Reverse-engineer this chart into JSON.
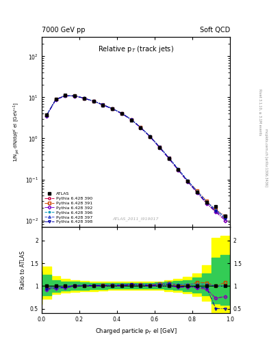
{
  "title_left": "7000 GeV pp",
  "title_right": "Soft QCD",
  "main_title": "Relative p$_T$ (track jets)",
  "xlabel": "Charged particle p$_{T}$ el [GeV]",
  "ylabel_main": "1/N$_{jet}$ dN/dp$^{rel}_{T}$ el [GeV$^{-1}$]",
  "ylabel_ratio": "Ratio to ATLAS",
  "watermark": "ATLAS_2011_I919017",
  "right_label1": "Rivet 3.1.10, ≥ 3.1M events",
  "right_label2": "mcplots.cern.ch [arXiv:1306.3436]",
  "xlim": [
    0.0,
    1.0
  ],
  "ylim_main": [
    0.007,
    300
  ],
  "ylim_ratio": [
    0.4,
    2.3
  ],
  "atlas_x": [
    0.025,
    0.075,
    0.125,
    0.175,
    0.225,
    0.275,
    0.325,
    0.375,
    0.425,
    0.475,
    0.525,
    0.575,
    0.625,
    0.675,
    0.725,
    0.775,
    0.825,
    0.875,
    0.925,
    0.975
  ],
  "atlas_y": [
    3.8,
    9.2,
    11.2,
    10.8,
    9.5,
    8.0,
    6.5,
    5.2,
    4.0,
    2.8,
    1.8,
    1.1,
    0.6,
    0.32,
    0.175,
    0.09,
    0.05,
    0.028,
    0.022,
    0.013
  ],
  "atlas_yerr": [
    0.3,
    0.4,
    0.5,
    0.5,
    0.4,
    0.3,
    0.25,
    0.2,
    0.15,
    0.1,
    0.07,
    0.04,
    0.025,
    0.013,
    0.007,
    0.004,
    0.002,
    0.0015,
    0.001,
    0.0008
  ],
  "series": [
    {
      "label": "Pythia 6.428 390",
      "color": "#cc0044",
      "linestyle": "-.",
      "marker": "o",
      "y": [
        3.6,
        9.0,
        11.1,
        10.9,
        9.6,
        8.1,
        6.6,
        5.3,
        4.1,
        2.9,
        1.85,
        1.12,
        0.62,
        0.33,
        0.17,
        0.088,
        0.048,
        0.026,
        0.016,
        0.01
      ],
      "ratio": [
        0.95,
        0.98,
        0.99,
        1.01,
        1.01,
        1.01,
        1.02,
        1.02,
        1.02,
        1.04,
        1.03,
        1.02,
        1.03,
        1.03,
        0.97,
        0.98,
        0.96,
        0.93,
        0.73,
        0.77
      ]
    },
    {
      "label": "Pythia 6.428 391",
      "color": "#cc4400",
      "linestyle": "-.",
      "marker": "s",
      "y": [
        3.6,
        9.0,
        11.1,
        10.9,
        9.6,
        8.1,
        6.6,
        5.3,
        4.1,
        2.9,
        1.85,
        1.12,
        0.63,
        0.34,
        0.175,
        0.092,
        0.054,
        0.03,
        0.018,
        0.013
      ],
      "ratio": [
        0.95,
        0.98,
        0.99,
        1.01,
        1.01,
        1.01,
        1.02,
        1.02,
        1.02,
        1.04,
        1.03,
        1.02,
        1.05,
        1.06,
        1.0,
        1.02,
        1.08,
        1.07,
        1.0,
        1.08
      ]
    },
    {
      "label": "Pythia 6.428 392",
      "color": "#7700cc",
      "linestyle": "-.",
      "marker": "D",
      "y": [
        3.5,
        8.7,
        10.8,
        10.7,
        9.5,
        8.0,
        6.5,
        5.2,
        4.0,
        2.85,
        1.82,
        1.1,
        0.6,
        0.32,
        0.17,
        0.088,
        0.048,
        0.026,
        0.016,
        0.01
      ],
      "ratio": [
        0.92,
        0.95,
        0.96,
        0.99,
        1.0,
        1.0,
        1.0,
        1.0,
        1.0,
        1.02,
        1.01,
        1.0,
        1.0,
        1.0,
        0.97,
        0.98,
        0.96,
        0.93,
        0.73,
        0.77
      ]
    },
    {
      "label": "Pythia 6.428 396",
      "color": "#0099bb",
      "linestyle": "--",
      "marker": "*",
      "y": [
        3.65,
        9.0,
        11.1,
        10.95,
        9.65,
        8.15,
        6.65,
        5.35,
        4.12,
        2.92,
        1.87,
        1.13,
        0.63,
        0.34,
        0.18,
        0.094,
        0.052,
        0.029,
        0.018,
        0.012
      ],
      "ratio": [
        0.96,
        0.98,
        0.99,
        1.02,
        1.02,
        1.02,
        1.02,
        1.03,
        1.03,
        1.04,
        1.04,
        1.03,
        1.05,
        1.06,
        1.03,
        1.04,
        1.04,
        1.04,
        1.0,
        1.0
      ]
    },
    {
      "label": "Pythia 6.428 397",
      "color": "#3344cc",
      "linestyle": "--",
      "marker": "^",
      "y": [
        3.65,
        9.0,
        11.1,
        10.95,
        9.65,
        8.15,
        6.65,
        5.35,
        4.12,
        2.92,
        1.87,
        1.13,
        0.63,
        0.34,
        0.18,
        0.094,
        0.052,
        0.029,
        0.018,
        0.012
      ],
      "ratio": [
        0.96,
        0.98,
        0.99,
        1.02,
        1.02,
        1.02,
        1.02,
        1.03,
        1.03,
        1.04,
        1.04,
        1.03,
        1.05,
        1.06,
        1.03,
        1.04,
        1.04,
        1.04,
        1.0,
        1.0
      ]
    },
    {
      "label": "Pythia 6.428 398",
      "color": "#0000aa",
      "linestyle": "-.",
      "marker": "v",
      "y": [
        3.55,
        8.8,
        10.9,
        10.85,
        9.55,
        8.05,
        6.55,
        5.25,
        4.05,
        2.87,
        1.84,
        1.11,
        0.61,
        0.33,
        0.172,
        0.089,
        0.049,
        0.027,
        0.017,
        0.011
      ],
      "ratio": [
        0.93,
        0.96,
        0.97,
        1.0,
        1.01,
        1.01,
        1.01,
        1.01,
        1.01,
        1.03,
        1.02,
        1.01,
        1.02,
        1.03,
        0.98,
        0.99,
        0.98,
        0.96,
        0.5,
        0.5
      ]
    }
  ],
  "band_yellow_x": [
    0.0,
    0.05,
    0.1,
    0.15,
    0.2,
    0.25,
    0.3,
    0.35,
    0.4,
    0.45,
    0.5,
    0.55,
    0.6,
    0.65,
    0.7,
    0.75,
    0.8,
    0.85,
    0.9,
    0.95,
    1.0
  ],
  "band_yellow_low": [
    0.6,
    0.72,
    0.82,
    0.86,
    0.87,
    0.88,
    0.89,
    0.9,
    0.91,
    0.92,
    0.92,
    0.92,
    0.92,
    0.91,
    0.89,
    0.87,
    0.84,
    0.78,
    0.68,
    0.42,
    0.4
  ],
  "band_yellow_high": [
    1.55,
    1.42,
    1.22,
    1.16,
    1.13,
    1.11,
    1.1,
    1.1,
    1.1,
    1.09,
    1.09,
    1.09,
    1.09,
    1.1,
    1.12,
    1.15,
    1.2,
    1.28,
    1.45,
    2.05,
    2.1
  ],
  "band_green_x": [
    0.0,
    0.05,
    0.1,
    0.15,
    0.2,
    0.25,
    0.3,
    0.35,
    0.4,
    0.45,
    0.5,
    0.55,
    0.6,
    0.65,
    0.7,
    0.75,
    0.8,
    0.85,
    0.9,
    0.95,
    1.0
  ],
  "band_green_low": [
    0.72,
    0.8,
    0.87,
    0.9,
    0.91,
    0.92,
    0.93,
    0.93,
    0.94,
    0.94,
    0.95,
    0.95,
    0.95,
    0.94,
    0.93,
    0.91,
    0.89,
    0.85,
    0.8,
    0.62,
    0.58
  ],
  "band_green_high": [
    1.32,
    1.25,
    1.13,
    1.1,
    1.09,
    1.08,
    1.07,
    1.07,
    1.07,
    1.07,
    1.07,
    1.07,
    1.07,
    1.08,
    1.09,
    1.11,
    1.13,
    1.18,
    1.28,
    1.62,
    1.68
  ]
}
